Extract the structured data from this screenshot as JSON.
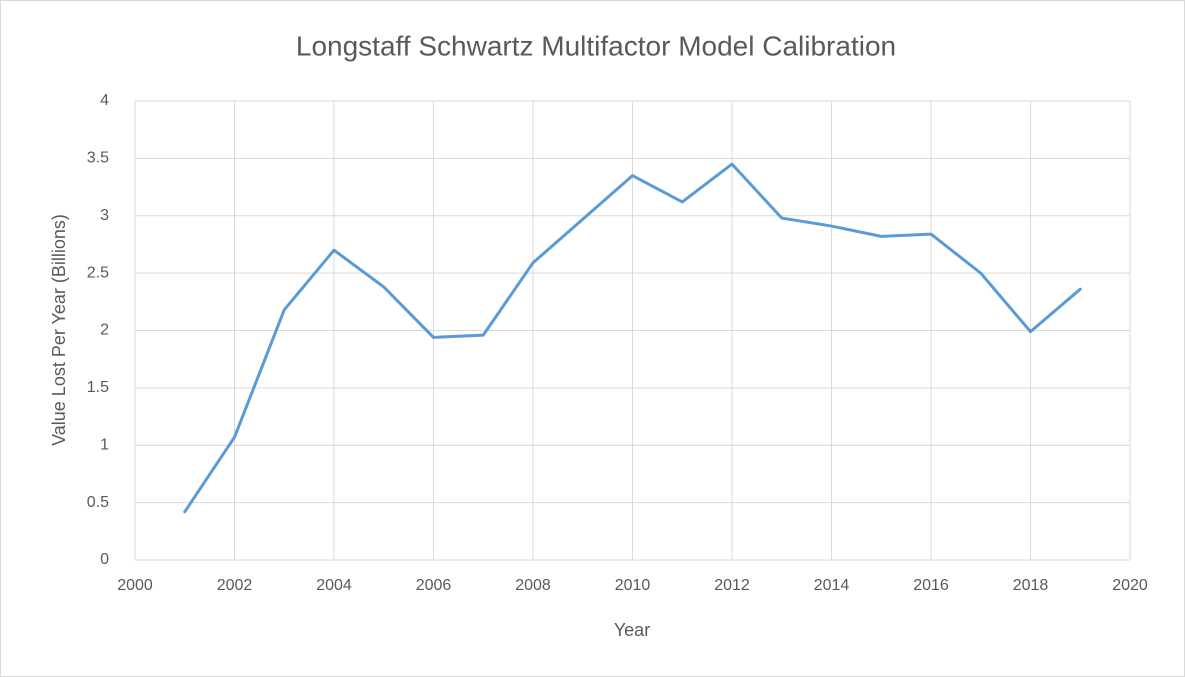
{
  "chart_data": {
    "type": "line",
    "title": "Longstaff Schwartz Multifactor Model Calibration",
    "x_label": "Year",
    "y_label": "Value Lost Per Year (Billions)",
    "x": [
      2001,
      2002,
      2003,
      2004,
      2005,
      2006,
      2007,
      2008,
      2009,
      2010,
      2011,
      2012,
      2013,
      2014,
      2015,
      2016,
      2017,
      2018,
      2019
    ],
    "values": [
      0.42,
      1.07,
      2.18,
      2.7,
      2.38,
      1.94,
      1.96,
      2.59,
      2.97,
      3.35,
      3.12,
      3.45,
      2.98,
      2.91,
      2.82,
      2.84,
      2.5,
      1.99,
      2.36
    ],
    "color": "#5b9bd5",
    "xlim": [
      2000,
      2020
    ],
    "xticks": [
      2000,
      2002,
      2004,
      2006,
      2008,
      2010,
      2012,
      2014,
      2016,
      2018,
      2020
    ],
    "ylim": [
      0,
      4
    ],
    "yticks": [
      0,
      0.5,
      1,
      1.5,
      2,
      2.5,
      3,
      3.5,
      4
    ],
    "grid": true
  }
}
